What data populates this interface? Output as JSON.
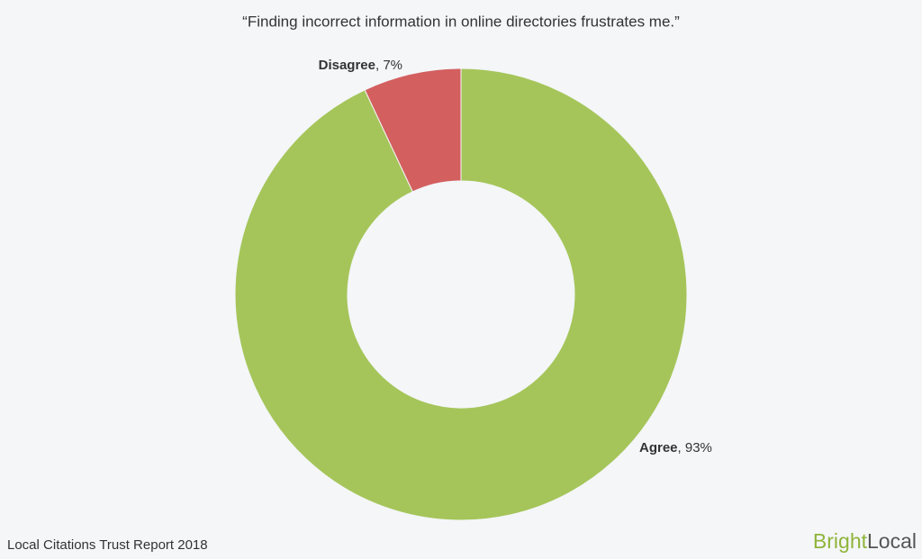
{
  "chart_data": {
    "type": "donut",
    "title": "“Finding incorrect information in online directories frustrates me.”",
    "categories": [
      "Agree",
      "Disagree"
    ],
    "values": [
      93,
      7
    ],
    "value_labels": [
      ", 93%",
      ", 7%"
    ],
    "colors": [
      "#a5c55a",
      "#d35f5f"
    ]
  },
  "footer": {
    "source": "Local Citations Trust Report 2018",
    "brand": [
      "Bright",
      "Local"
    ]
  }
}
